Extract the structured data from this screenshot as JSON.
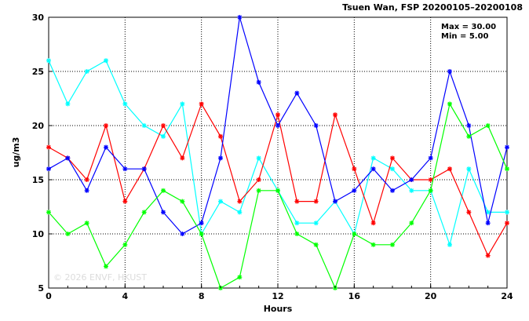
{
  "chart_data": {
    "type": "line",
    "title": "Tsuen Wan, FSP 20200105–20200108",
    "xlabel": "Hours",
    "ylabel": "ug/m3",
    "xlim": [
      0,
      24
    ],
    "ylim": [
      5,
      30
    ],
    "xticks": [
      0,
      4,
      8,
      12,
      16,
      20,
      24
    ],
    "yticks": [
      5,
      10,
      15,
      20,
      25,
      30
    ],
    "grid": true,
    "stats": {
      "max_label": "Max = 30.00",
      "min_label": "Min =  5.00"
    },
    "watermark": "© 2026  ENVF, HKUST",
    "x": [
      0,
      1,
      2,
      3,
      4,
      5,
      6,
      7,
      8,
      9,
      10,
      11,
      12,
      13,
      14,
      15,
      16,
      17,
      18,
      19,
      20,
      21,
      22,
      23,
      24
    ],
    "series": [
      {
        "color": "#00ffff",
        "values": [
          26,
          22,
          25,
          26,
          22,
          20,
          19,
          22,
          10,
          13,
          12,
          17,
          14,
          11,
          11,
          13,
          10,
          17,
          16,
          14,
          14,
          9,
          16,
          12,
          12
        ]
      },
      {
        "color": "#ff0000",
        "values": [
          18,
          17,
          15,
          20,
          13,
          16,
          20,
          17,
          22,
          19,
          13,
          15,
          21,
          13,
          13,
          21,
          16,
          11,
          17,
          15,
          15,
          16,
          12,
          8,
          11
        ]
      },
      {
        "color": "#0000ff",
        "values": [
          16,
          17,
          14,
          18,
          16,
          16,
          12,
          10,
          11,
          17,
          30,
          24,
          20,
          23,
          20,
          13,
          14,
          16,
          14,
          15,
          17,
          25,
          20,
          11,
          18
        ]
      },
      {
        "color": "#00ff00",
        "values": [
          12,
          10,
          11,
          7,
          9,
          12,
          14,
          13,
          10,
          5,
          6,
          14,
          14,
          10,
          9,
          5,
          10,
          9,
          9,
          11,
          14,
          22,
          19,
          20,
          16
        ]
      }
    ]
  }
}
